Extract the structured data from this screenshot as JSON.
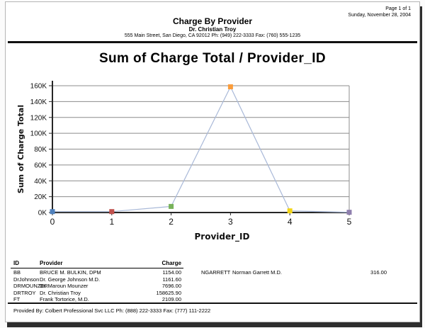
{
  "page_meta": {
    "page_number": "Page 1 of 1",
    "date": "Sunday, November 28, 2004"
  },
  "header": {
    "title": "Charge By Provider",
    "subtitle": "Dr. Christian Troy",
    "address": "555 Main Street, San Diego, CA 92012 Ph: (949) 222-3333 Fax: (760) 555-1235"
  },
  "chart_data": {
    "type": "line",
    "title": "Sum of Charge Total / Provider_ID",
    "xlabel": "Provider_ID",
    "ylabel": "Sum of Charge Total",
    "x": [
      0,
      1,
      2,
      3,
      4,
      5
    ],
    "xtick_labels": [
      "0",
      "1",
      "2",
      "3",
      "4",
      "5"
    ],
    "values": [
      1154.0,
      1161.6,
      7696.0,
      158625.9,
      2109.0,
      316.0
    ],
    "ylim": [
      0,
      160000
    ],
    "ytick_step": 20000,
    "ytick_labels": [
      "0K",
      "20K",
      "40K",
      "60K",
      "80K",
      "100K",
      "120K",
      "140K",
      "160K"
    ],
    "grid": true,
    "legend": "none",
    "line_color": "#a9b9d8",
    "marker_colors": [
      "#4f81bd",
      "#c0504d",
      "#77b25a",
      "#fb9d3b",
      "#f3d516",
      "#8f7fae"
    ]
  },
  "table": {
    "columns": [
      "ID",
      "Provider",
      "Charge"
    ],
    "rows_left": [
      {
        "id": "BB",
        "provider": "BRUCE M. BULKIN, DPM",
        "charge": "1154.00"
      },
      {
        "id": "DrJohnson",
        "provider": "Dr. George Johnson M.D.",
        "charge": "1161.60"
      },
      {
        "id": "DRMOUNZER",
        "provider": "Dr. Maroun Mounzer",
        "charge": "7696.00"
      },
      {
        "id": "DRTROY",
        "provider": "Dr. Christian Troy",
        "charge": "158625.90"
      },
      {
        "id": "FT",
        "provider": "Frank Tortorice, M.D.",
        "charge": "2109.00"
      }
    ],
    "rows_right": [
      {
        "id": "NGARRETT",
        "provider": "Norman Garrett M.D.",
        "charge": "316.00"
      }
    ]
  },
  "footer": {
    "provided_by": "Provided By: Colbert Professional Svc LLC Ph: (888) 222-3333 Fax: (777) 111-2222"
  }
}
